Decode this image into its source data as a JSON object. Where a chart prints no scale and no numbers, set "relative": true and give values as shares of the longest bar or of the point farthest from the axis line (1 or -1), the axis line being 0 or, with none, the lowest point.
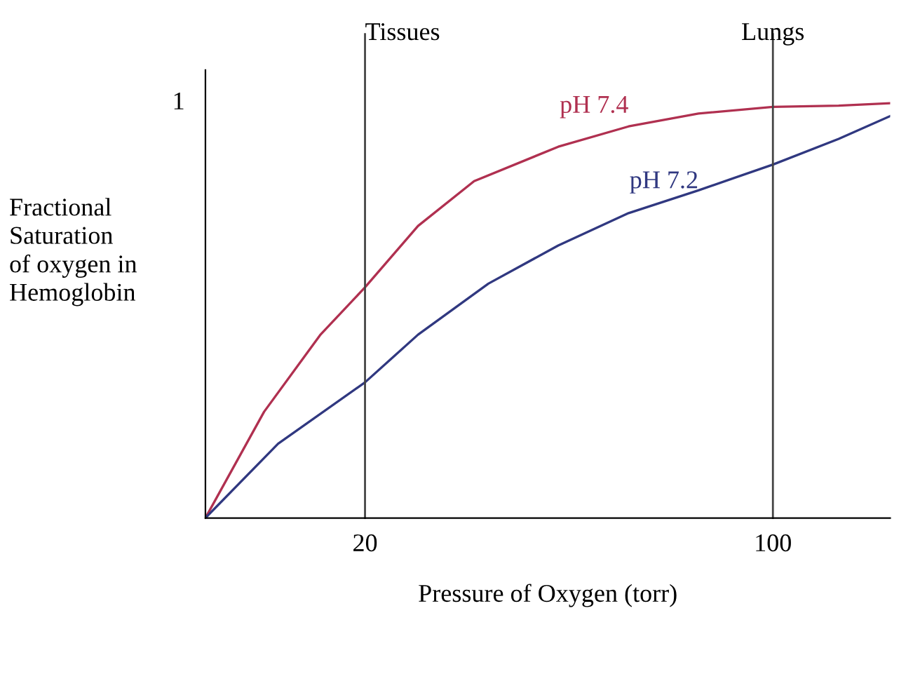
{
  "chart_data": {
    "type": "line",
    "relative": true,
    "xlabel": "Pressure of Oxygen (torr)",
    "ylabel": "Fractional\nSaturation\nof oxygen in\nHemoglobin",
    "annotations": [
      "1"
    ],
    "xlim": [
      -11.3,
      123
    ],
    "xticks": [
      20,
      100
    ],
    "grid": false,
    "legend": false,
    "marker": "none",
    "line_style": "solid",
    "ref_lines": [
      {
        "axis": "x",
        "value": 20,
        "label": "Tissues",
        "color": "#444444"
      },
      {
        "axis": "x",
        "value": 100,
        "label": "Lungs",
        "color": "#444444"
      }
    ],
    "series": [
      {
        "name": "pH 7.4",
        "color": "#b03050",
        "x": [
          -11.3,
          0.2,
          11.2,
          20,
          30.4,
          41.4,
          57.9,
          71.7,
          85.4,
          100,
          112.9,
          123
        ],
        "values": [
          0,
          0.256,
          0.441,
          0.556,
          0.704,
          0.812,
          0.895,
          0.944,
          0.975,
          0.991,
          0.994,
          1
        ]
      },
      {
        "name": "pH 7.2",
        "color": "#303880",
        "x": [
          -11.3,
          2.95,
          20,
          30.4,
          44.2,
          57.9,
          71.7,
          85.4,
          100,
          112.9,
          123
        ],
        "values": [
          0,
          0.179,
          0.327,
          0.442,
          0.565,
          0.657,
          0.735,
          0.79,
          0.852,
          0.914,
          0.969
        ]
      }
    ]
  }
}
